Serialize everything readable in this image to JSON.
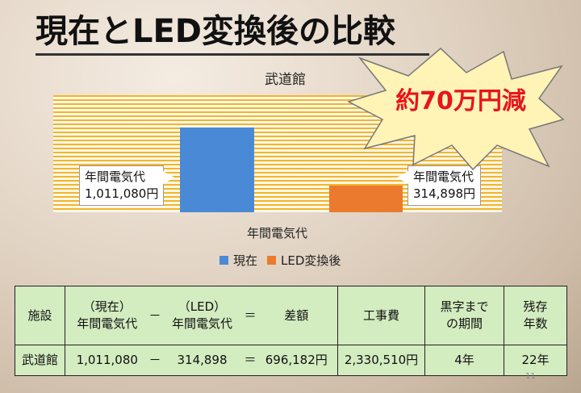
{
  "slide": {
    "title": "現在とLED変換後の比較",
    "page_number": "11"
  },
  "burst": {
    "text": "約70万円減"
  },
  "callouts": {
    "genzai": {
      "line1": "年間電気代",
      "line2": "1,011,080円"
    },
    "led": {
      "line1": "年間電気代",
      "line2": "314,898円"
    }
  },
  "chart_data": {
    "type": "bar",
    "title": "武道館",
    "categories": [
      "年間電気代"
    ],
    "xlabel": "年間電気代",
    "series": [
      {
        "name": "現在",
        "values": [
          1011080
        ]
      },
      {
        "name": "LED変換後",
        "values": [
          314898
        ]
      }
    ],
    "ylim": [
      0,
      1400000
    ],
    "colors": {
      "現在": "#4a89d6",
      "LED変換後": "#ec7a2e"
    },
    "legend": "bottom",
    "grid": true
  },
  "table": {
    "headers": {
      "facility": "施設",
      "current_l1": "（現在）",
      "current_l2": "年間電気代",
      "minus": "－",
      "led_l1": "（LED）",
      "led_l2": "年間電気代",
      "equals": "＝",
      "difference": "差額",
      "construction": "工事費",
      "breakeven_l1": "黒字まで",
      "breakeven_l2": "の期間",
      "remaining_l1": "残存",
      "remaining_l2": "年数"
    },
    "row": {
      "facility": "武道館",
      "current": "1,011,080",
      "minus": "－",
      "led": "314,898",
      "equals": "＝",
      "difference": "696,182円",
      "construction": "2,330,510円",
      "breakeven": "4年",
      "remaining": "22年"
    }
  }
}
